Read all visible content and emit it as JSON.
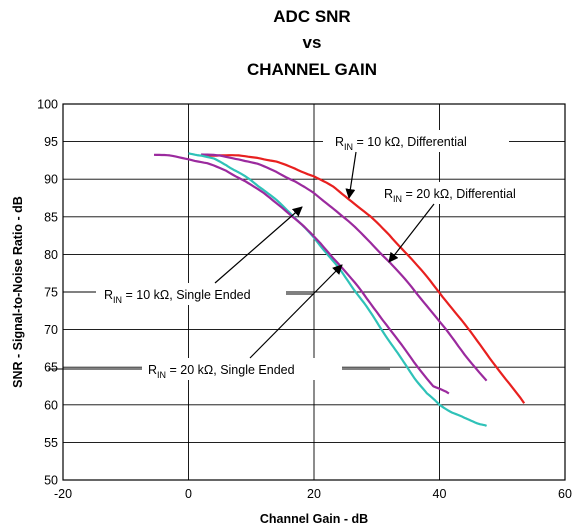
{
  "chart_data": {
    "type": "line",
    "title": [
      "ADC SNR",
      "vs",
      "CHANNEL GAIN"
    ],
    "xlabel": "Channel Gain - dB",
    "ylabel": "SNR - Signal-to-Noise Ratio - dB",
    "xlim": [
      -20,
      60
    ],
    "ylim": [
      50,
      100
    ],
    "xticks": [
      -20,
      0,
      20,
      40,
      60
    ],
    "yticks": [
      50,
      55,
      60,
      65,
      70,
      75,
      80,
      85,
      90,
      95,
      100
    ],
    "grid": true,
    "series": [
      {
        "color": "#e8201f",
        "points": [
          [
            2,
            93.2
          ],
          [
            5,
            93.2
          ],
          [
            8,
            93.1
          ],
          [
            11,
            92.9
          ],
          [
            14,
            92.3
          ],
          [
            17,
            91.4
          ],
          [
            20,
            90.4
          ],
          [
            23,
            89.0
          ],
          [
            26,
            87.1
          ],
          [
            29,
            85.0
          ],
          [
            32,
            82.6
          ],
          [
            35,
            79.9
          ],
          [
            38,
            77.0
          ],
          [
            41,
            73.9
          ],
          [
            44,
            70.7
          ],
          [
            47,
            67.4
          ],
          [
            50,
            64.0
          ],
          [
            53.5,
            60.2
          ]
        ]
      },
      {
        "color": "#9b2a9e",
        "points": [
          [
            2,
            93.3
          ],
          [
            5,
            93.1
          ],
          [
            8,
            92.7
          ],
          [
            11,
            92.0
          ],
          [
            14,
            91.0
          ],
          [
            17,
            89.7
          ],
          [
            20,
            88.1
          ],
          [
            23,
            86.2
          ],
          [
            26,
            84.0
          ],
          [
            29,
            81.6
          ],
          [
            32,
            79.0
          ],
          [
            35,
            76.2
          ],
          [
            38,
            73.2
          ],
          [
            41,
            70.0
          ],
          [
            44,
            66.7
          ],
          [
            47.5,
            63.2
          ]
        ]
      },
      {
        "color": "#2fc2b8",
        "points": [
          [
            0,
            93.4
          ],
          [
            2,
            93.2
          ],
          [
            4,
            92.7
          ],
          [
            6,
            91.9
          ],
          [
            8,
            90.9
          ],
          [
            10,
            89.8
          ],
          [
            12,
            88.6
          ],
          [
            14,
            87.2
          ],
          [
            16,
            85.7
          ],
          [
            18,
            84.0
          ],
          [
            20,
            82.2
          ],
          [
            22,
            80.2
          ],
          [
            24,
            78.1
          ],
          [
            26,
            75.8
          ],
          [
            28,
            73.5
          ],
          [
            30,
            71.0
          ],
          [
            32,
            68.5
          ],
          [
            34,
            66.0
          ],
          [
            36,
            63.6
          ],
          [
            38,
            61.5
          ],
          [
            40,
            60.0
          ],
          [
            42,
            59.0
          ],
          [
            44,
            58.2
          ],
          [
            46,
            57.6
          ],
          [
            47.5,
            57.2
          ]
        ]
      },
      {
        "color": "#9b2a9e",
        "points": [
          [
            -5.5,
            93.3
          ],
          [
            -3,
            93.1
          ],
          [
            0,
            92.7
          ],
          [
            3,
            92.1
          ],
          [
            6,
            91.1
          ],
          [
            9,
            89.8
          ],
          [
            12,
            88.1
          ],
          [
            15,
            86.2
          ],
          [
            18,
            84.0
          ],
          [
            21,
            81.5
          ],
          [
            24,
            78.7
          ],
          [
            27,
            75.7
          ],
          [
            30,
            72.4
          ],
          [
            33,
            69.0
          ],
          [
            36,
            65.6
          ],
          [
            39,
            62.5
          ],
          [
            41.5,
            61.5
          ]
        ]
      }
    ],
    "annotations": [
      {
        "pre": "R",
        "sub": "IN",
        "post": " = 10 kΩ, Differential"
      },
      {
        "pre": "R",
        "sub": "IN",
        "post": " = 20 kΩ, Differential"
      },
      {
        "pre": "R",
        "sub": "IN",
        "post": " = 10 kΩ, Single Ended"
      },
      {
        "pre": "R",
        "sub": "IN",
        "post": " = 20 kΩ, Single Ended"
      }
    ]
  }
}
